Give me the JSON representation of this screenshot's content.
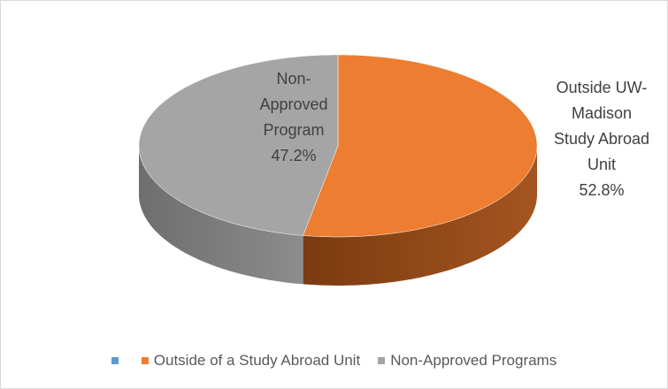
{
  "chart_data": {
    "type": "pie",
    "three_d": true,
    "categories": [
      null,
      "Outside of a Study Abroad Unit",
      "Non-Approved Programs"
    ],
    "values": [
      0,
      52.8,
      47.2
    ],
    "data_labels": [
      null,
      "Outside UW-Madison Study Abroad Unit",
      "Non-Approved Program"
    ],
    "value_labels": [
      null,
      "52.8%",
      "47.2%"
    ],
    "colors": [
      "#5b9bd5",
      "#ed7d31",
      "#a5a5a5"
    ],
    "legend": "bottom"
  }
}
